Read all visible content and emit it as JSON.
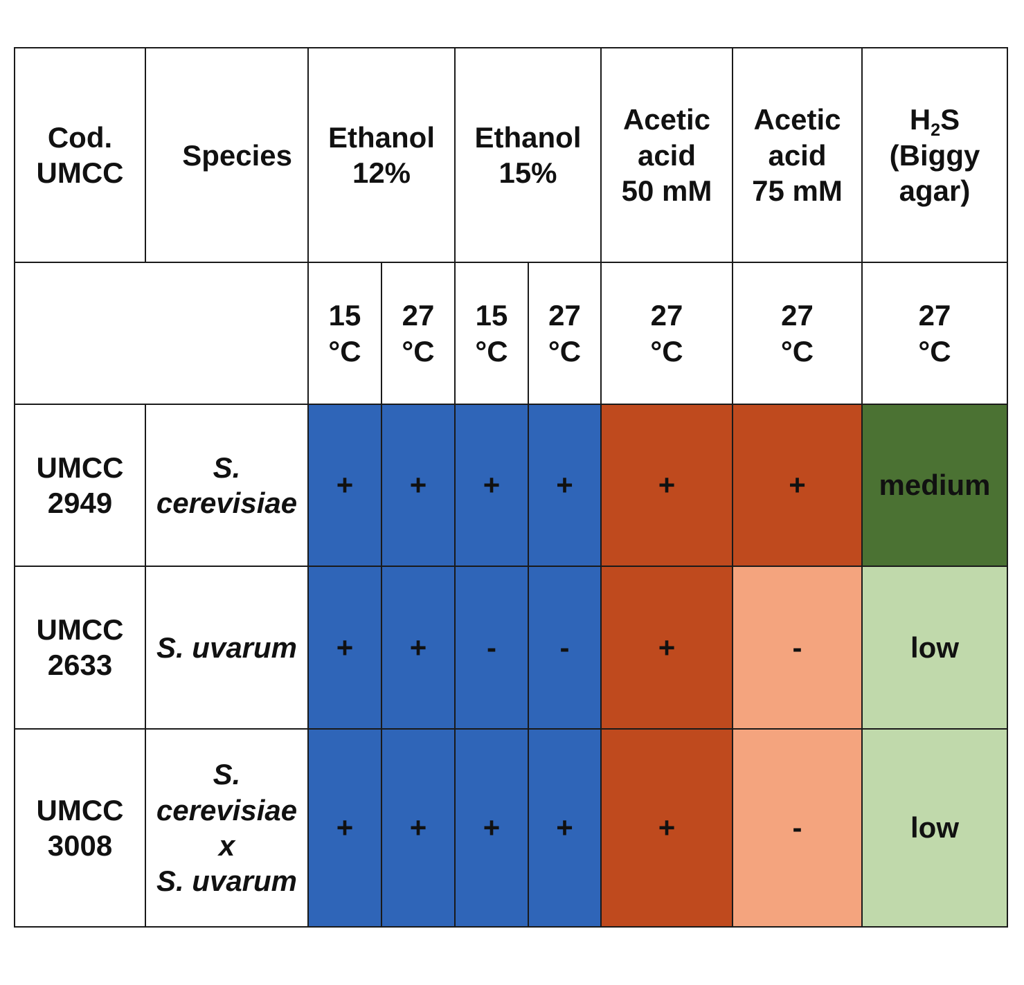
{
  "header": {
    "code": [
      "Cod.",
      "UMCC"
    ],
    "species": "Species",
    "ethanol12": [
      "Ethanol",
      "12%"
    ],
    "ethanol15": [
      "Ethanol",
      "15%"
    ],
    "acetic50": [
      "Acetic",
      "acid",
      "50 mM"
    ],
    "acetic75": [
      "Acetic",
      "acid",
      "75 mM"
    ],
    "h2s": {
      "h": "H",
      "sub": "2",
      "s": "S",
      "line2": "(Biggy",
      "line3": "agar)"
    }
  },
  "temperatures": {
    "t1": [
      "15",
      "°C"
    ],
    "t2": [
      "27",
      "°C"
    ],
    "t3": [
      "15",
      "°C"
    ],
    "t4": [
      "27",
      "°C"
    ],
    "t5": [
      "27",
      "°C"
    ],
    "t6": [
      "27",
      "°C"
    ],
    "t7": [
      "27",
      "°C"
    ]
  },
  "rows": [
    {
      "code": [
        "UMCC",
        "2949"
      ],
      "species": [
        "S.",
        "cerevisiae"
      ],
      "values": [
        "+",
        "+",
        "+",
        "+",
        "+",
        "+",
        "medium"
      ]
    },
    {
      "code": [
        "UMCC",
        "2633"
      ],
      "species": [
        "S. uvarum"
      ],
      "values": [
        "+",
        "+",
        "-",
        "-",
        "+",
        "-",
        "low"
      ]
    },
    {
      "code": [
        "UMCC",
        "3008"
      ],
      "species": [
        "S.",
        "cerevisiae",
        "x",
        "S. uvarum"
      ],
      "values": [
        "+",
        "+",
        "+",
        "+",
        "+",
        "-",
        "low"
      ]
    }
  ],
  "colors": {
    "ethanol": "#2f65b8",
    "acetic_positive": "#bf4a1e",
    "acetic_negative": "#f4a47e",
    "h2s_medium": "#4b7233",
    "h2s_low": "#c0d9ab",
    "border": "#1a1a1a"
  }
}
